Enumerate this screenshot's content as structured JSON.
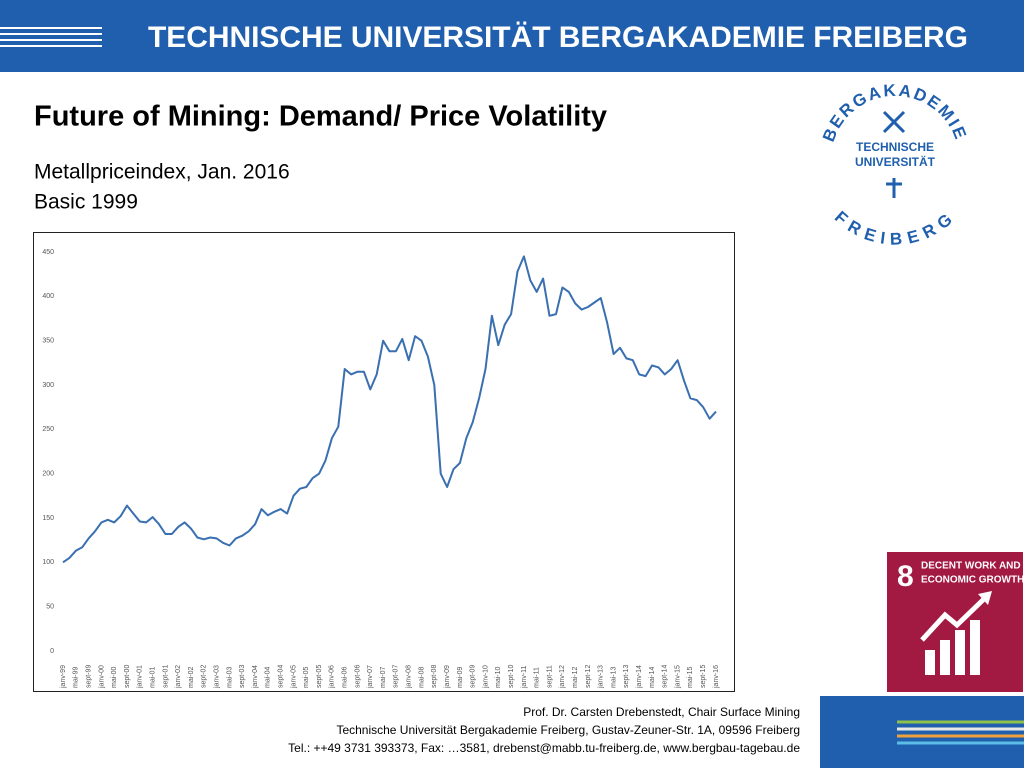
{
  "header": {
    "title": "TECHNISCHE UNIVERSITÄT BERGAKADEMIE FREIBERG"
  },
  "logo": {
    "ring_top": "BERGAKADEMIE",
    "ring_bottom": "FREIBERG",
    "center": [
      "TECHNISCHE",
      "UNIVERSITÄT"
    ]
  },
  "slide": {
    "title": "Future of Mining: Demand/ Price Volatility",
    "subtitle": [
      "Metallpriceindex, Jan. 2016",
      "Basic 1999"
    ]
  },
  "chart_data": {
    "type": "line",
    "color": "#3a6fb0",
    "grid": false,
    "categories": [
      "janv-99",
      null,
      "mai-99",
      null,
      "sept-99",
      null,
      "janv-00",
      null,
      "mai-00",
      null,
      "sept-00",
      null,
      "janv-01",
      null,
      "mai-01",
      null,
      "sept-01",
      null,
      "janv-02",
      null,
      "mai-02",
      null,
      "sept-02",
      null,
      "janv-03",
      null,
      "mai-03",
      null,
      "sept-03",
      null,
      "janv-04",
      null,
      "mai-04",
      null,
      "sept-04",
      null,
      "janv-05",
      null,
      "mai-05",
      null,
      "sept-05",
      null,
      "janv-06",
      null,
      "mai-06",
      null,
      "sept-06",
      null,
      "janv-07",
      null,
      "mai-07",
      null,
      "sept-07",
      null,
      "janv-08",
      null,
      "mai-08",
      null,
      "sept-08",
      null,
      "janv-09",
      null,
      "mai-09",
      null,
      "sept-09",
      null,
      "janv-10",
      null,
      "mai-10",
      null,
      "sept-10",
      null,
      "janv-11",
      null,
      "mai-11",
      null,
      "sept-11",
      null,
      "janv-12",
      null,
      "mai-12",
      null,
      "sept-12",
      null,
      "janv-13",
      null,
      "mai-13",
      null,
      "sept-13",
      null,
      "janv-14",
      null,
      "mai-14",
      null,
      "sept-14",
      null,
      "janv-15",
      null,
      "mai-15",
      null,
      "sept-15",
      null,
      "janv-16"
    ],
    "values": [
      100,
      105,
      113,
      117,
      127,
      135,
      145,
      148,
      145,
      152,
      164,
      155,
      146,
      145,
      151,
      143,
      132,
      132,
      140,
      145,
      138,
      128,
      126,
      128,
      127,
      122,
      119,
      127,
      130,
      135,
      143,
      160,
      153,
      157,
      160,
      155,
      175,
      183,
      185,
      195,
      200,
      215,
      240,
      253,
      318,
      312,
      315,
      315,
      295,
      312,
      350,
      338,
      338,
      352,
      328,
      355,
      350,
      332,
      300,
      200,
      185,
      205,
      212,
      240,
      258,
      285,
      318,
      378,
      345,
      368,
      380,
      428,
      445,
      418,
      405,
      420,
      378,
      380,
      410,
      405,
      392,
      385,
      388,
      393,
      398,
      370,
      335,
      342,
      330,
      328,
      312,
      310,
      322,
      320,
      312,
      318,
      328,
      305,
      285,
      283,
      275,
      262,
      270
    ],
    "ylim": [
      0,
      450
    ],
    "yticks": [
      0,
      50,
      100,
      150,
      200,
      250,
      300,
      350,
      400,
      450
    ]
  },
  "sdg": {
    "number": "8",
    "label": [
      "DECENT WORK AND",
      "ECONOMIC GROWTH"
    ]
  },
  "footer": [
    "Prof. Dr. Carsten Drebenstedt, Chair Surface Mining",
    "Technische Universität Bergakademie Freiberg, Gustav-Zeuner-Str. 1A,  09596 Freiberg",
    "Tel.: ++49 3731 393373, Fax: …3581, drebenst@mabb.tu-freiberg.de, www.bergbau-tagebau.de"
  ]
}
